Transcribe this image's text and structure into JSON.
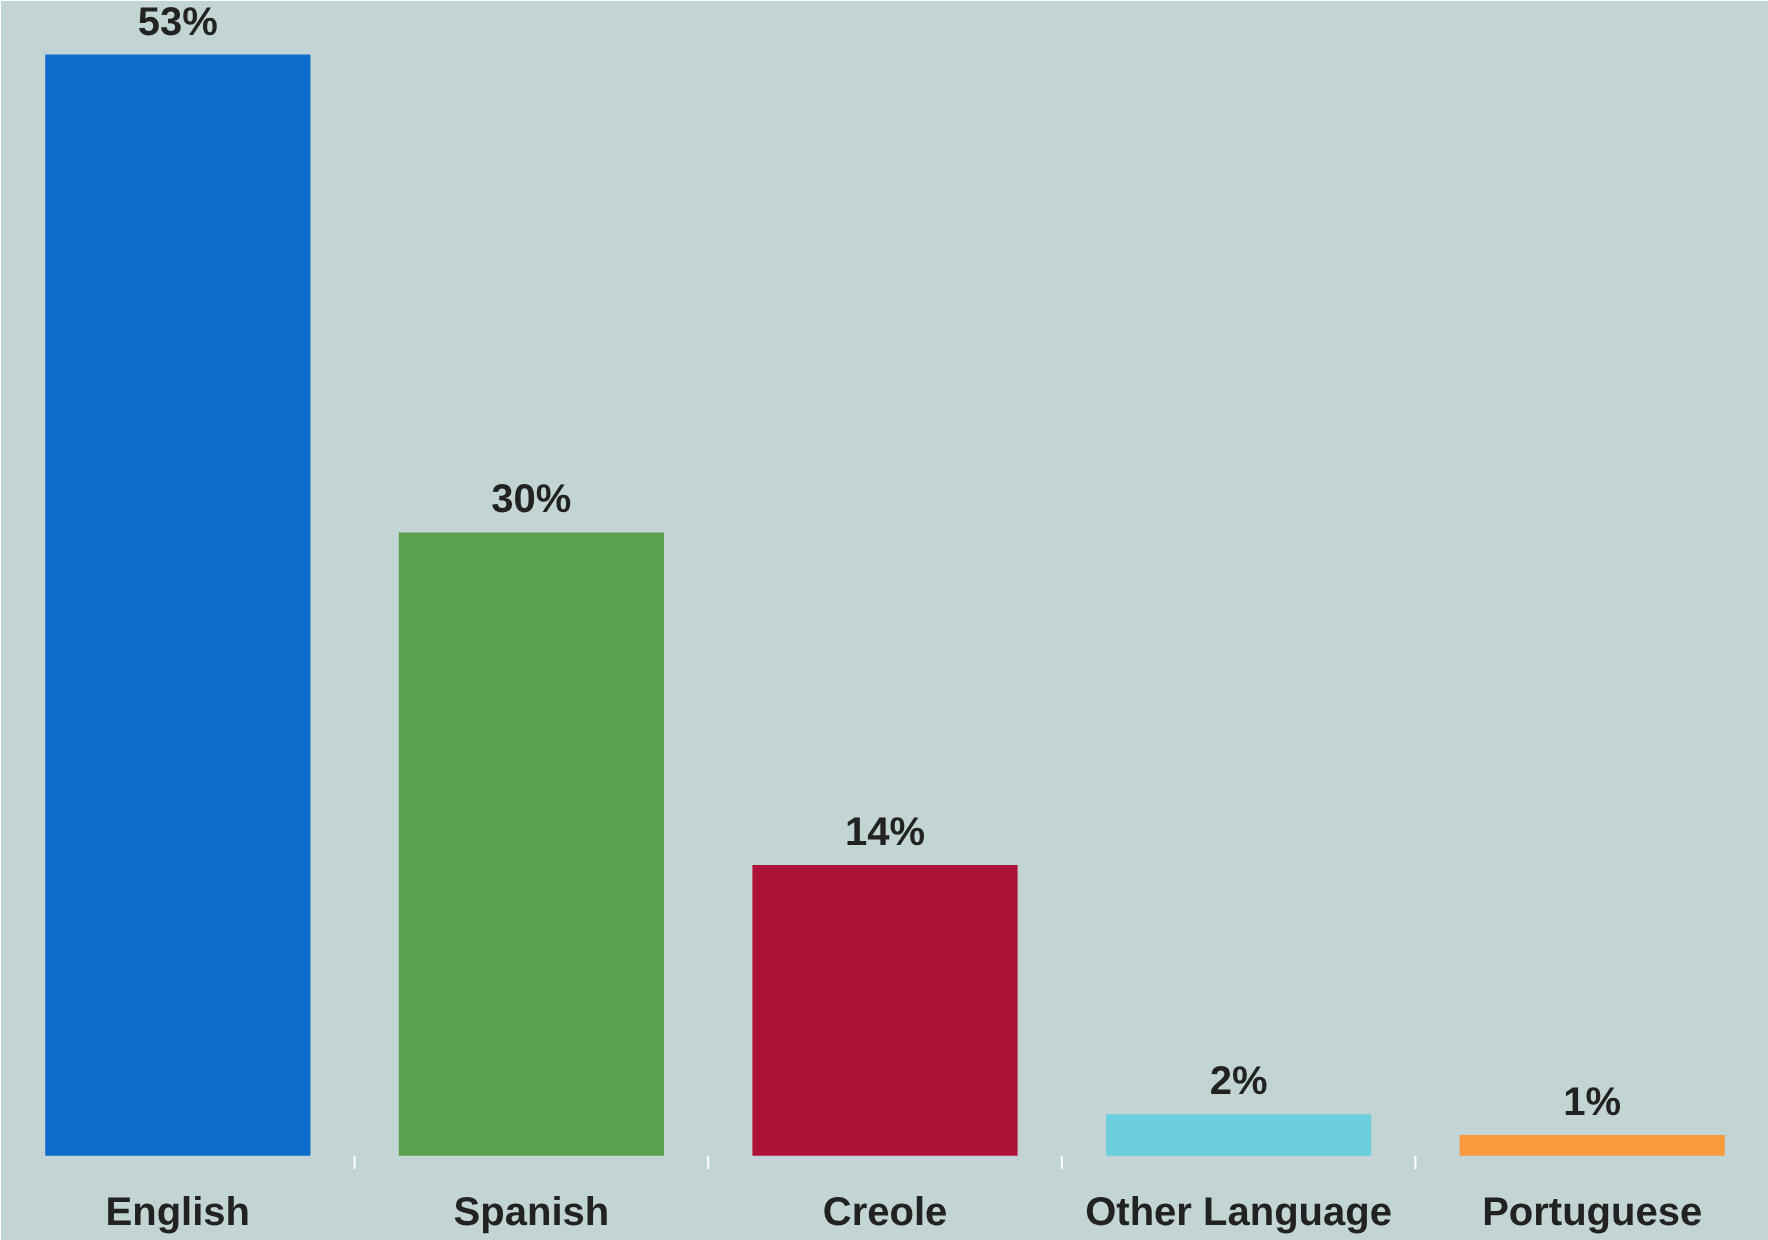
{
  "chart_data": {
    "type": "bar",
    "categories": [
      "English",
      "Spanish",
      "Creole",
      "Other Language",
      "Portuguese"
    ],
    "values": [
      53,
      30,
      14,
      2,
      1
    ],
    "colors": [
      "#0e6dcc",
      "#5aa04e",
      "#ad1238",
      "#6ccfdd",
      "#f99a3f"
    ],
    "value_labels": [
      "53%",
      "30%",
      "14%",
      "2%",
      "1%"
    ],
    "grid": false
  }
}
